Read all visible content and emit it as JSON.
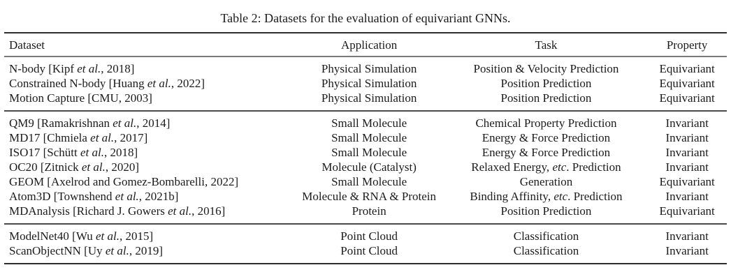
{
  "title": "Table 2: Datasets for the evaluation of equivariant GNNs.",
  "table": {
    "columns": [
      "Dataset",
      "Application",
      "Task",
      "Property"
    ],
    "groups": [
      {
        "name": "physical-simulation",
        "rows": [
          {
            "dataset": [
              {
                "t": "N-body [Kipf "
              },
              {
                "t": "et al.",
                "i": true
              },
              {
                "t": ", 2018]"
              }
            ],
            "application": "Physical Simulation",
            "task": [
              {
                "t": "Position & Velocity Prediction"
              }
            ],
            "property": "Equivariant"
          },
          {
            "dataset": [
              {
                "t": "Constrained N-body [Huang "
              },
              {
                "t": "et al.",
                "i": true
              },
              {
                "t": ", 2022]"
              }
            ],
            "application": "Physical Simulation",
            "task": [
              {
                "t": "Position Prediction"
              }
            ],
            "property": "Equivariant"
          },
          {
            "dataset": [
              {
                "t": "Motion Capture [CMU, 2003]"
              }
            ],
            "application": "Physical Simulation",
            "task": [
              {
                "t": "Position Prediction"
              }
            ],
            "property": "Equivariant"
          }
        ]
      },
      {
        "name": "molecule",
        "rows": [
          {
            "dataset": [
              {
                "t": "QM9 [Ramakrishnan "
              },
              {
                "t": "et al.",
                "i": true
              },
              {
                "t": ", 2014]"
              }
            ],
            "application": "Small Molecule",
            "task": [
              {
                "t": "Chemical Property Prediction"
              }
            ],
            "property": "Invariant"
          },
          {
            "dataset": [
              {
                "t": "MD17 [Chmiela "
              },
              {
                "t": "et al.",
                "i": true
              },
              {
                "t": ", 2017]"
              }
            ],
            "application": "Small Molecule",
            "task": [
              {
                "t": "Energy & Force Prediction"
              }
            ],
            "property": "Invariant"
          },
          {
            "dataset": [
              {
                "t": "ISO17 [Schütt "
              },
              {
                "t": "et al.",
                "i": true
              },
              {
                "t": ", 2018]"
              }
            ],
            "application": "Small Molecule",
            "task": [
              {
                "t": "Energy & Force Prediction"
              }
            ],
            "property": "Invariant"
          },
          {
            "dataset": [
              {
                "t": "OC20 [Zitnick "
              },
              {
                "t": "et al.",
                "i": true
              },
              {
                "t": ", 2020]"
              }
            ],
            "application": "Molecule (Catalyst)",
            "task": [
              {
                "t": "Relaxed Energy, "
              },
              {
                "t": "etc",
                "i": true
              },
              {
                "t": ". Prediction"
              }
            ],
            "property": "Invariant"
          },
          {
            "dataset": [
              {
                "t": "GEOM [Axelrod and Gomez-Bombarelli, 2022]"
              }
            ],
            "application": "Small Molecule",
            "task": [
              {
                "t": "Generation"
              }
            ],
            "property": "Equivariant"
          },
          {
            "dataset": [
              {
                "t": "Atom3D [Townshend "
              },
              {
                "t": "et al.",
                "i": true
              },
              {
                "t": ", 2021b]"
              }
            ],
            "application": "Molecule & RNA & Protein",
            "task": [
              {
                "t": "Binding Affinity, "
              },
              {
                "t": "etc",
                "i": true
              },
              {
                "t": ". Prediction"
              }
            ],
            "property": "Invariant"
          },
          {
            "dataset": [
              {
                "t": "MDAnalysis [Richard J. Gowers "
              },
              {
                "t": "et al.",
                "i": true
              },
              {
                "t": ", 2016]"
              }
            ],
            "application": "Protein",
            "task": [
              {
                "t": "Position Prediction"
              }
            ],
            "property": "Equivariant"
          }
        ]
      },
      {
        "name": "point-cloud",
        "rows": [
          {
            "dataset": [
              {
                "t": "ModelNet40 [Wu "
              },
              {
                "t": "et al.",
                "i": true
              },
              {
                "t": ", 2015]"
              }
            ],
            "application": "Point Cloud",
            "task": [
              {
                "t": "Classification"
              }
            ],
            "property": "Invariant"
          },
          {
            "dataset": [
              {
                "t": "ScanObjectNN [Uy "
              },
              {
                "t": "et al.",
                "i": true
              },
              {
                "t": ", 2019]"
              }
            ],
            "application": "Point Cloud",
            "task": [
              {
                "t": "Classification"
              }
            ],
            "property": "Invariant"
          }
        ]
      }
    ]
  }
}
